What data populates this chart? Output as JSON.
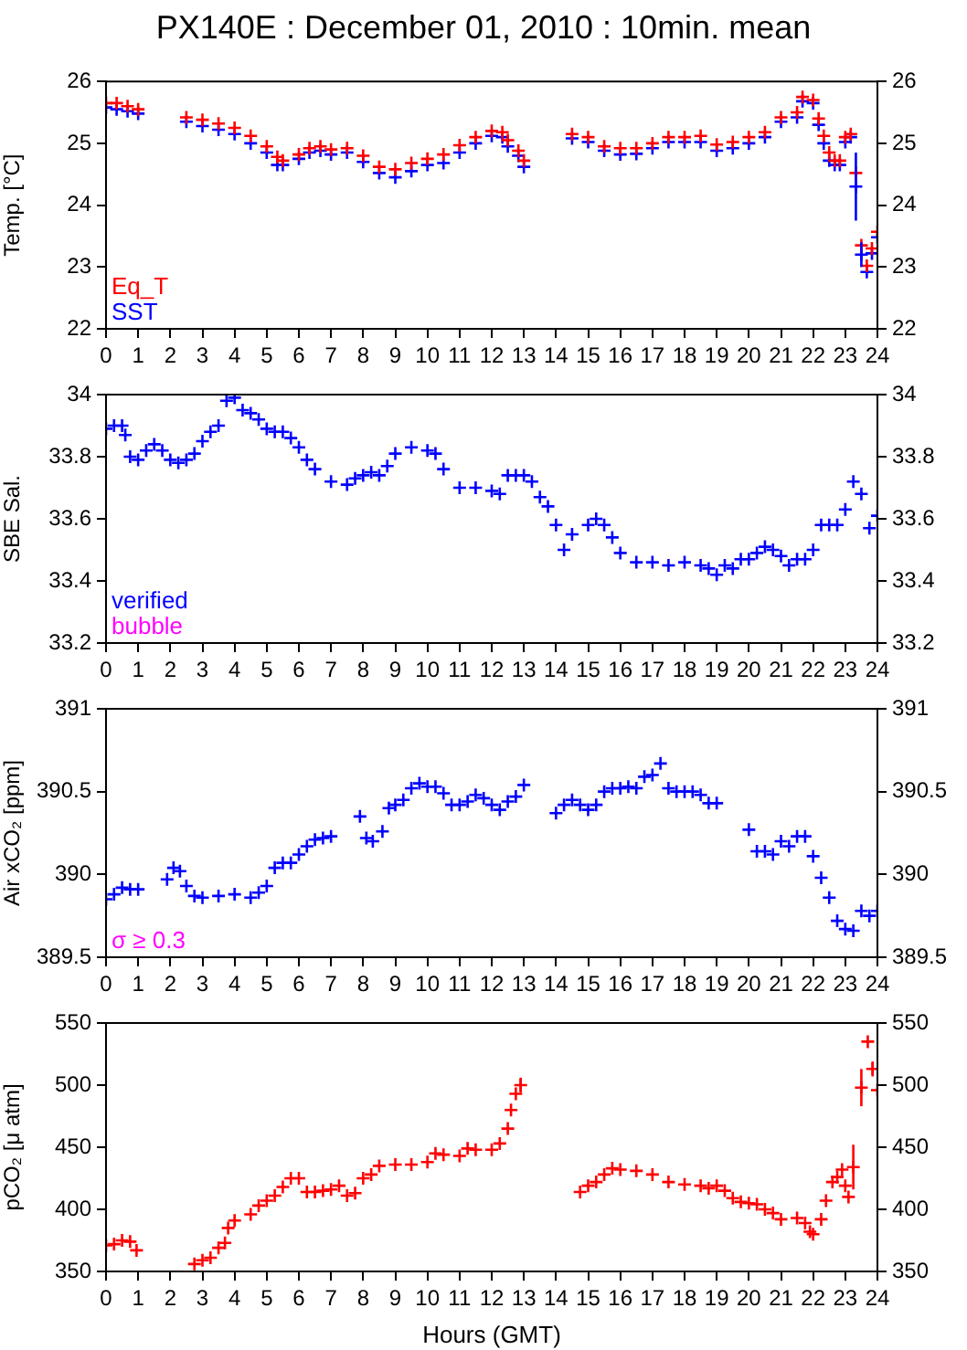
{
  "chart_data": [
    {
      "type": "scatter",
      "title": "PX140E : December 01, 2010 : 10min. mean",
      "ylabel": "Temp. [°C]",
      "marker": "cross",
      "legend": "bottom left",
      "x": [
        0,
        0.33,
        0.67,
        1,
        2.5,
        3,
        3.5,
        4,
        4.5,
        5,
        5.33,
        5.5,
        6,
        6.33,
        6.67,
        7,
        7.5,
        8,
        8.5,
        9,
        9.5,
        10,
        10.5,
        11,
        11.5,
        12,
        12.33,
        12.5,
        12.83,
        13,
        14.5,
        15,
        15.5,
        16,
        16.5,
        17,
        17.5,
        18,
        18.5,
        19,
        19.5,
        20,
        20.5,
        21,
        21.5,
        21.67,
        22,
        22.17,
        22.33,
        22.5,
        22.67,
        22.83,
        23,
        23.17,
        23.33,
        23.5,
        23.67,
        23.83,
        24
      ],
      "series": [
        {
          "name": "Eq_T",
          "color": "#ff0000",
          "values": [
            25.65,
            25.65,
            25.6,
            25.55,
            25.42,
            25.38,
            25.32,
            25.25,
            25.12,
            24.95,
            24.78,
            24.72,
            24.82,
            24.92,
            24.95,
            24.9,
            24.92,
            24.8,
            24.62,
            24.58,
            24.68,
            24.75,
            24.82,
            24.97,
            25.1,
            25.2,
            25.18,
            25.05,
            24.88,
            24.72,
            25.15,
            25.1,
            24.95,
            24.92,
            24.92,
            25.0,
            25.1,
            25.1,
            25.12,
            24.98,
            25.02,
            25.1,
            25.18,
            25.42,
            25.5,
            25.75,
            25.7,
            25.4,
            25.12,
            24.85,
            24.72,
            24.72,
            25.1,
            25.15,
            24.52,
            23.35,
            23.02,
            23.3,
            23.57
          ]
        },
        {
          "name": "SST",
          "color": "#0000ff",
          "values": [
            25.58,
            25.55,
            25.52,
            25.48,
            25.35,
            25.28,
            25.22,
            25.15,
            25.0,
            24.85,
            24.65,
            24.65,
            24.75,
            24.85,
            24.88,
            24.82,
            24.85,
            24.7,
            24.52,
            24.45,
            24.55,
            24.65,
            24.68,
            24.85,
            25.0,
            25.12,
            25.1,
            24.95,
            24.8,
            24.62,
            25.08,
            25.02,
            24.88,
            24.82,
            24.83,
            24.92,
            25.02,
            25.02,
            25.02,
            24.88,
            24.92,
            25.0,
            25.1,
            25.35,
            25.42,
            25.68,
            25.65,
            25.3,
            25.0,
            24.72,
            24.65,
            24.65,
            25.02,
            25.1,
            24.3,
            23.2,
            22.92,
            23.22,
            23.48
          ],
          "errors": [
            null,
            null,
            null,
            null,
            null,
            null,
            null,
            null,
            null,
            null,
            null,
            null,
            null,
            null,
            null,
            null,
            null,
            null,
            null,
            null,
            null,
            null,
            null,
            null,
            null,
            null,
            null,
            null,
            null,
            null,
            null,
            null,
            null,
            null,
            null,
            null,
            null,
            null,
            null,
            null,
            null,
            null,
            null,
            null,
            null,
            null,
            null,
            null,
            null,
            null,
            null,
            null,
            null,
            null,
            0.55,
            0.2,
            null,
            null,
            null
          ]
        }
      ],
      "xlim": [
        0,
        24
      ],
      "xticks": [
        0,
        1,
        2,
        3,
        4,
        5,
        6,
        7,
        8,
        9,
        10,
        11,
        12,
        13,
        14,
        15,
        16,
        17,
        18,
        19,
        20,
        21,
        22,
        23,
        24
      ],
      "ylim": [
        22,
        26
      ],
      "yticks": [
        22,
        23,
        24,
        25,
        26
      ],
      "y2lim": [
        22,
        26
      ],
      "y2ticks": [
        22,
        23,
        24,
        25,
        26
      ]
    },
    {
      "type": "scatter",
      "ylabel": "SBE Sal.",
      "marker": "cross",
      "legend": "bottom left",
      "annotations": [
        "bubble"
      ],
      "x": [
        0,
        0.25,
        0.5,
        0.6,
        0.75,
        1,
        1.25,
        1.5,
        1.75,
        2,
        2.25,
        2.5,
        2.75,
        3,
        3.25,
        3.5,
        3.75,
        4,
        4.25,
        4.5,
        4.75,
        5,
        5.25,
        5.5,
        5.75,
        6,
        6.25,
        6.5,
        7,
        7.5,
        7.75,
        8,
        8.25,
        8.5,
        8.75,
        9,
        9.5,
        10,
        10.25,
        10.5,
        11,
        11.5,
        12,
        12.25,
        12.5,
        12.75,
        13,
        13.25,
        13.5,
        13.75,
        14,
        14.25,
        14.5,
        15,
        15.25,
        15.5,
        15.75,
        16,
        16.5,
        17,
        17.5,
        18,
        18.5,
        18.75,
        19,
        19.25,
        19.5,
        19.75,
        20,
        20.25,
        20.5,
        20.75,
        21,
        21.25,
        21.5,
        21.75,
        22,
        22.25,
        22.5,
        22.75,
        23,
        23.25,
        23.5,
        23.75,
        24
      ],
      "series": [
        {
          "name": "verified",
          "color": "#0000ff",
          "values": [
            33.89,
            33.9,
            33.9,
            33.87,
            33.8,
            33.79,
            33.82,
            33.84,
            33.82,
            33.79,
            33.78,
            33.79,
            33.81,
            33.85,
            33.88,
            33.9,
            33.98,
            33.99,
            33.95,
            33.94,
            33.92,
            33.89,
            33.88,
            33.88,
            33.86,
            33.83,
            33.79,
            33.76,
            33.72,
            33.71,
            33.73,
            33.74,
            33.75,
            33.74,
            33.77,
            33.81,
            33.83,
            33.82,
            33.81,
            33.76,
            33.7,
            33.7,
            33.69,
            33.68,
            33.74,
            33.74,
            33.74,
            33.72,
            33.67,
            33.64,
            33.58,
            33.5,
            33.55,
            33.58,
            33.6,
            33.58,
            33.54,
            33.49,
            33.46,
            33.46,
            33.45,
            33.46,
            33.45,
            33.44,
            33.42,
            33.45,
            33.44,
            33.47,
            33.47,
            33.49,
            33.51,
            33.5,
            33.48,
            33.45,
            33.47,
            33.47,
            33.5,
            33.58,
            33.58,
            33.58,
            33.63,
            33.72,
            33.68,
            33.57,
            33.61
          ]
        }
      ],
      "xlim": [
        0,
        24
      ],
      "xticks": [
        0,
        1,
        2,
        3,
        4,
        5,
        6,
        7,
        8,
        9,
        10,
        11,
        12,
        13,
        14,
        15,
        16,
        17,
        18,
        19,
        20,
        21,
        22,
        23,
        24
      ],
      "ylim": [
        33.2,
        34
      ],
      "yticks": [
        33.2,
        33.4,
        33.6,
        33.8,
        34
      ],
      "y2lim": [
        33.2,
        34
      ],
      "y2ticks": [
        33.2,
        33.4,
        33.6,
        33.8,
        34
      ]
    },
    {
      "type": "scatter",
      "ylabel": "Air xCO₂ [ppm]",
      "marker": "cross",
      "annotations": [
        "σ ≥ 0.3"
      ],
      "x": [
        0,
        0.25,
        0.5,
        0.75,
        1,
        1.9,
        2.1,
        2.3,
        2.5,
        2.75,
        3,
        3.5,
        4,
        4.5,
        4.75,
        5,
        5.25,
        5.5,
        5.75,
        6,
        6.25,
        6.5,
        6.75,
        7,
        7.9,
        8.1,
        8.3,
        8.6,
        8.8,
        9,
        9.25,
        9.5,
        9.75,
        10,
        10.25,
        10.5,
        10.75,
        11,
        11.25,
        11.5,
        11.75,
        12,
        12.25,
        12.5,
        12.75,
        13,
        14,
        14.25,
        14.5,
        14.75,
        15,
        15.25,
        15.5,
        15.75,
        16,
        16.25,
        16.5,
        16.75,
        17,
        17.25,
        17.5,
        17.75,
        18,
        18.25,
        18.5,
        18.75,
        19,
        20,
        20.25,
        20.5,
        20.75,
        21,
        21.25,
        21.5,
        21.75,
        22,
        22.25,
        22.5,
        22.75,
        23,
        23.25,
        23.5,
        23.75,
        24
      ],
      "series": [
        {
          "color": "#0000ff",
          "values": [
            389.85,
            389.88,
            389.92,
            389.91,
            389.91,
            389.97,
            390.04,
            390.02,
            389.93,
            389.87,
            389.86,
            389.87,
            389.88,
            389.86,
            389.89,
            389.93,
            390.04,
            390.07,
            390.07,
            390.12,
            390.17,
            390.21,
            390.22,
            390.23,
            390.35,
            390.22,
            390.2,
            390.26,
            390.4,
            390.42,
            390.45,
            390.52,
            390.55,
            390.53,
            390.53,
            390.49,
            390.42,
            390.42,
            390.44,
            390.48,
            390.46,
            390.42,
            390.39,
            390.44,
            390.47,
            390.54,
            390.37,
            390.42,
            390.45,
            390.42,
            390.39,
            390.42,
            390.5,
            390.52,
            390.52,
            390.53,
            390.52,
            390.59,
            390.6,
            390.67,
            390.52,
            390.5,
            390.5,
            390.5,
            390.48,
            390.43,
            390.43,
            390.27,
            390.14,
            390.14,
            390.12,
            390.2,
            390.17,
            390.23,
            390.23,
            390.11,
            389.98,
            389.86,
            389.72,
            389.67,
            389.66,
            389.78,
            389.75,
            389.78
          ]
        }
      ],
      "xlim": [
        0,
        24
      ],
      "xticks": [
        0,
        1,
        2,
        3,
        4,
        5,
        6,
        7,
        8,
        9,
        10,
        11,
        12,
        13,
        14,
        15,
        16,
        17,
        18,
        19,
        20,
        21,
        22,
        23,
        24
      ],
      "ylim": [
        389.5,
        391
      ],
      "yticks": [
        389.5,
        390,
        390.5,
        391
      ],
      "y2lim": [
        389.5,
        391
      ],
      "y2ticks": [
        389.5,
        390,
        390.5,
        391
      ]
    },
    {
      "type": "scatter",
      "ylabel": "pCO₂ [μ atm]",
      "xlabel": "Hours (GMT)",
      "marker": "cross",
      "x": [
        0,
        0.25,
        0.5,
        0.75,
        0.95,
        2.75,
        3,
        3.25,
        3.5,
        3.7,
        3.8,
        4,
        4.5,
        4.75,
        5,
        5.25,
        5.5,
        5.75,
        6,
        6.25,
        6.5,
        6.75,
        7,
        7.25,
        7.5,
        7.75,
        8,
        8.25,
        8.5,
        9,
        9.5,
        10,
        10.25,
        10.5,
        11,
        11.25,
        11.5,
        12,
        12.25,
        12.5,
        12.6,
        12.75,
        12.9,
        14.75,
        15,
        15.25,
        15.5,
        15.75,
        16,
        16.5,
        17,
        17.5,
        18,
        18.5,
        18.75,
        19,
        19.25,
        19.5,
        19.75,
        20,
        20.25,
        20.5,
        20.75,
        21,
        21.5,
        21.75,
        21.9,
        22,
        22.25,
        22.4,
        22.6,
        22.75,
        22.9,
        23,
        23.1,
        23.25,
        23.5,
        23.7,
        23.85,
        24
      ],
      "series": [
        {
          "color": "#ff0000",
          "values": [
            371,
            372,
            375,
            374,
            367,
            356,
            359,
            361,
            369,
            373,
            385,
            391,
            396,
            403,
            407,
            411,
            418,
            425,
            425,
            414,
            414,
            415,
            416,
            419,
            411,
            413,
            425,
            428,
            435,
            436,
            436,
            438,
            445,
            444,
            443,
            449,
            448,
            448,
            453,
            465,
            480,
            493,
            500,
            414,
            419,
            422,
            428,
            433,
            432,
            431,
            428,
            422,
            420,
            419,
            417,
            419,
            415,
            409,
            406,
            405,
            404,
            400,
            397,
            392,
            393,
            389,
            382,
            380,
            392,
            407,
            422,
            426,
            432,
            419,
            410,
            434,
            498,
            535,
            513,
            496
          ],
          "errors": [
            null,
            null,
            null,
            null,
            null,
            null,
            null,
            null,
            null,
            null,
            null,
            null,
            null,
            null,
            null,
            null,
            null,
            null,
            null,
            null,
            null,
            null,
            null,
            null,
            null,
            null,
            null,
            null,
            null,
            null,
            null,
            null,
            null,
            null,
            null,
            null,
            null,
            null,
            null,
            null,
            null,
            null,
            6,
            null,
            null,
            null,
            null,
            null,
            null,
            null,
            null,
            null,
            null,
            null,
            null,
            null,
            null,
            null,
            null,
            null,
            null,
            null,
            null,
            null,
            null,
            null,
            null,
            null,
            null,
            null,
            null,
            null,
            null,
            null,
            null,
            18,
            15,
            null,
            6,
            null
          ]
        }
      ],
      "xlim": [
        0,
        24
      ],
      "xticks": [
        0,
        1,
        2,
        3,
        4,
        5,
        6,
        7,
        8,
        9,
        10,
        11,
        12,
        13,
        14,
        15,
        16,
        17,
        18,
        19,
        20,
        21,
        22,
        23,
        24
      ],
      "ylim": [
        350,
        550
      ],
      "yticks": [
        350,
        400,
        450,
        500,
        550
      ],
      "y2lim": [
        350,
        550
      ],
      "y2ticks": [
        350,
        400,
        450,
        500,
        550
      ]
    }
  ]
}
